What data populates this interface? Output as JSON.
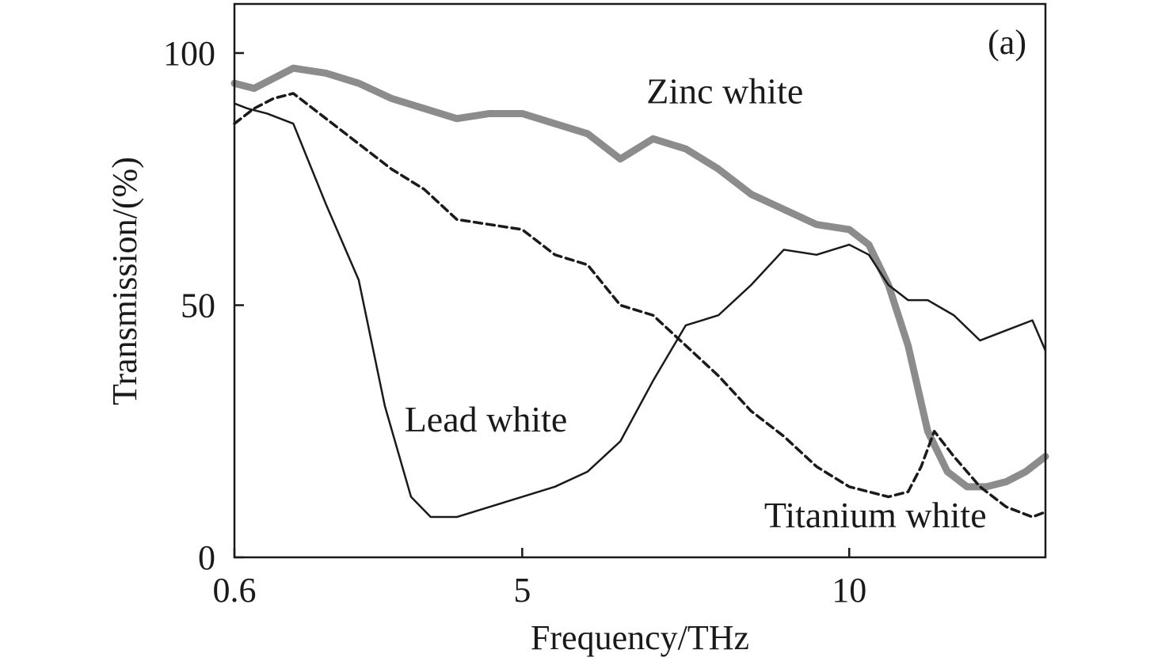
{
  "chart_data": {
    "type": "line",
    "panel_label": "(a)",
    "xlabel": "Frequency/THz",
    "ylabel": "Transmission/(%)",
    "xlim": [
      0.6,
      13.0
    ],
    "ylim": [
      0,
      100
    ],
    "x_ticks": [
      0.6,
      5,
      10
    ],
    "x_tick_labels": [
      "0.6",
      "5",
      "10"
    ],
    "y_ticks": [
      0,
      50,
      100
    ],
    "y_tick_labels": [
      "0",
      "50",
      "100"
    ],
    "grid": false,
    "legend": "none",
    "series": [
      {
        "name": "Zinc white",
        "style": "thick-gray",
        "color": "#8c8c8c",
        "x": [
          0.6,
          0.9,
          1.2,
          1.5,
          2.0,
          2.5,
          3.0,
          3.5,
          4.0,
          4.5,
          5.0,
          5.5,
          6.0,
          6.5,
          7.0,
          7.5,
          8.0,
          8.5,
          9.0,
          9.5,
          10.0,
          10.3,
          10.6,
          10.9,
          11.2,
          11.5,
          11.8,
          12.1,
          12.4,
          12.7,
          13.0
        ],
        "y": [
          94,
          93,
          95,
          97,
          96,
          94,
          91,
          89,
          87,
          88,
          88,
          86,
          84,
          79,
          83,
          81,
          77,
          72,
          69,
          66,
          65,
          62,
          54,
          42,
          25,
          17,
          14,
          14,
          15,
          17,
          20
        ]
      },
      {
        "name": "Lead white",
        "style": "thin-solid",
        "color": "#1a1a1a",
        "x": [
          0.6,
          0.8,
          1.1,
          1.5,
          2.0,
          2.5,
          2.9,
          3.3,
          3.6,
          4.0,
          4.5,
          5.0,
          5.5,
          6.0,
          6.5,
          7.0,
          7.5,
          8.0,
          8.5,
          9.0,
          9.5,
          10.0,
          10.3,
          10.6,
          10.9,
          11.2,
          11.6,
          12.0,
          12.4,
          12.8,
          13.0
        ],
        "y": [
          90,
          89,
          88,
          86,
          70,
          55,
          30,
          12,
          8,
          8,
          10,
          12,
          14,
          17,
          23,
          35,
          46,
          48,
          54,
          61,
          60,
          62,
          60,
          54,
          51,
          51,
          48,
          43,
          45,
          47,
          41
        ]
      },
      {
        "name": "Titanium white",
        "style": "dashed",
        "color": "#1a1a1a",
        "x": [
          0.6,
          0.9,
          1.2,
          1.5,
          2.0,
          2.5,
          3.0,
          3.5,
          4.0,
          4.5,
          5.0,
          5.5,
          6.0,
          6.5,
          7.0,
          7.5,
          8.0,
          8.5,
          9.0,
          9.5,
          10.0,
          10.3,
          10.6,
          10.9,
          11.1,
          11.3,
          11.6,
          12.0,
          12.4,
          12.8,
          13.0
        ],
        "y": [
          86,
          89,
          91,
          92,
          87,
          82,
          77,
          73,
          67,
          66,
          65,
          60,
          58,
          50,
          48,
          42,
          36,
          29,
          24,
          18,
          14,
          13,
          12,
          13,
          18,
          25,
          20,
          14,
          10,
          8,
          9
        ]
      }
    ],
    "annotations": [
      {
        "text": "Zinc white",
        "x": 6.9,
        "y": 90
      },
      {
        "text": "Lead white",
        "x": 3.2,
        "y": 25
      },
      {
        "text": "Titanium white",
        "x": 8.7,
        "y": 6
      }
    ]
  }
}
